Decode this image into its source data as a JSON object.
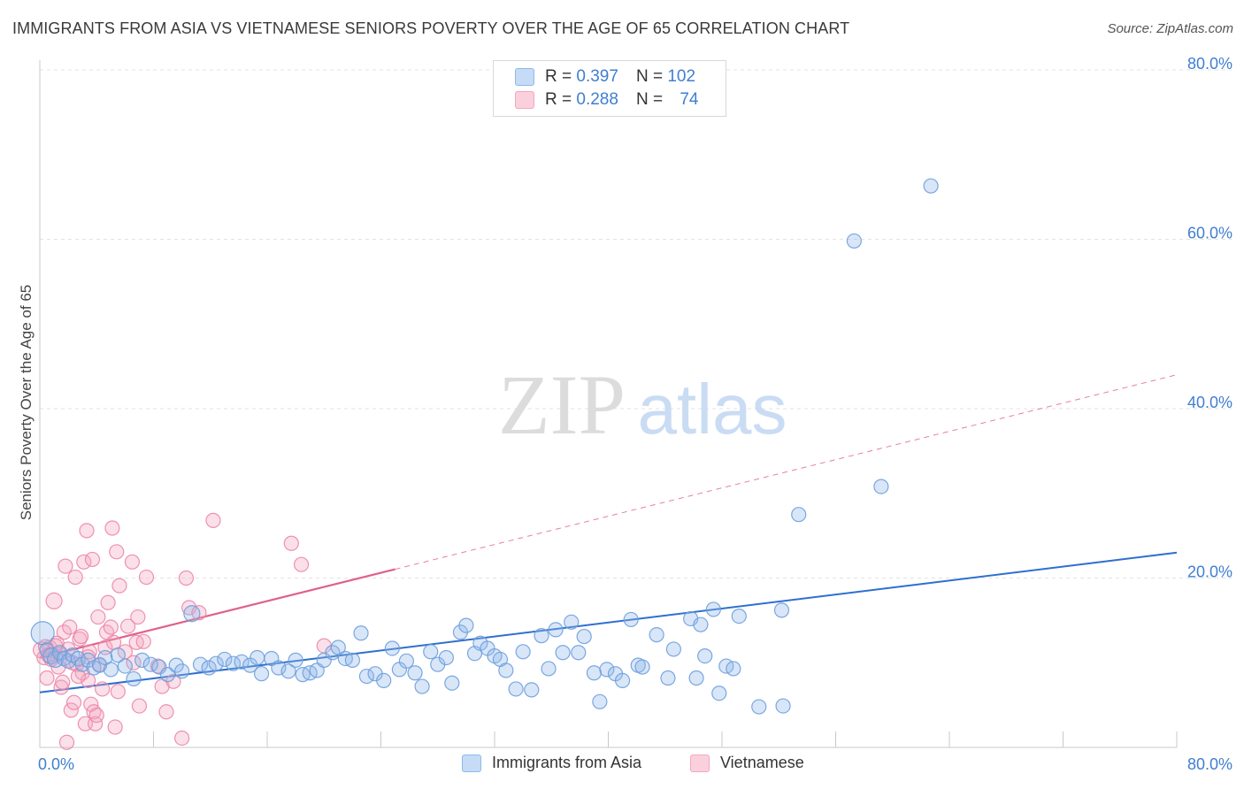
{
  "chart_data": {
    "type": "scatter",
    "title": "IMMIGRANTS FROM ASIA VS VIETNAMESE SENIORS POVERTY OVER THE AGE OF 65 CORRELATION CHART",
    "source": "Source: ZipAtlas.com",
    "watermark": {
      "zip": "ZIP",
      "atlas": "atlas"
    },
    "ylabel": "Seniors Poverty Over the Age of 65",
    "xlim": [
      0,
      80
    ],
    "ylim": [
      0,
      80
    ],
    "x_tick_labels": [
      "0.0%",
      "80.0%"
    ],
    "y_ticks": [
      {
        "value": 80,
        "label": "80.0%"
      },
      {
        "value": 60,
        "label": "60.0%"
      },
      {
        "value": 40,
        "label": "40.0%"
      },
      {
        "value": 20,
        "label": "20.0%"
      }
    ],
    "legend": [
      {
        "r_label": "R =",
        "r_value": "0.397",
        "n_label": "N =",
        "n_value": "102"
      },
      {
        "r_label": "R =",
        "r_value": "0.288",
        "n_label": "N =",
        "n_value": "74"
      }
    ],
    "series": [
      {
        "name": "Immigrants from Asia",
        "color": "#8fb8ea",
        "stroke": "#6d9edc",
        "line_color": "#2f6fce",
        "trend": {
          "x0": 0,
          "y0": 6.5,
          "x1": 80,
          "y1": 23.0,
          "dashed_until": 80
        },
        "points": [
          [
            0.2,
            13.5,
            13
          ],
          [
            0.5,
            11.5,
            8
          ],
          [
            0.8,
            10.8,
            9
          ],
          [
            1.1,
            10.4,
            9
          ],
          [
            1.4,
            11.2,
            8
          ],
          [
            1.7,
            10.5,
            8
          ],
          [
            2.0,
            10.2,
            8
          ],
          [
            2.3,
            10.9,
            8
          ],
          [
            2.7,
            10.5,
            8
          ],
          [
            3.0,
            9.8,
            8
          ],
          [
            3.4,
            10.3,
            8
          ],
          [
            3.8,
            9.4,
            8
          ],
          [
            4.2,
            9.7,
            8
          ],
          [
            4.6,
            10.6,
            8
          ],
          [
            5.0,
            9.2,
            8
          ],
          [
            5.5,
            10.9,
            8
          ],
          [
            6.0,
            9.6,
            8
          ],
          [
            6.6,
            8.1,
            8
          ],
          [
            7.2,
            10.3,
            8
          ],
          [
            7.8,
            9.8,
            8
          ],
          [
            8.4,
            9.5,
            8
          ],
          [
            9.0,
            8.6,
            8
          ],
          [
            9.6,
            9.7,
            8
          ],
          [
            10.0,
            9.0,
            8
          ],
          [
            10.7,
            15.8,
            9
          ],
          [
            11.3,
            9.8,
            8
          ],
          [
            11.9,
            9.4,
            8
          ],
          [
            12.4,
            9.9,
            8
          ],
          [
            13.0,
            10.4,
            8
          ],
          [
            13.6,
            9.9,
            8
          ],
          [
            14.2,
            10.1,
            8
          ],
          [
            14.8,
            9.7,
            8
          ],
          [
            15.3,
            10.6,
            8
          ],
          [
            15.6,
            8.7,
            8
          ],
          [
            16.3,
            10.5,
            8
          ],
          [
            16.8,
            9.4,
            8
          ],
          [
            17.5,
            9.0,
            8
          ],
          [
            18.0,
            10.3,
            8
          ],
          [
            18.5,
            8.6,
            8
          ],
          [
            19.0,
            8.8,
            8
          ],
          [
            19.5,
            9.1,
            8
          ],
          [
            20.0,
            10.3,
            8
          ],
          [
            20.6,
            11.2,
            8
          ],
          [
            21.0,
            11.8,
            8
          ],
          [
            21.5,
            10.5,
            8
          ],
          [
            22.0,
            10.3,
            8
          ],
          [
            22.6,
            13.5,
            8
          ],
          [
            23.0,
            8.4,
            8
          ],
          [
            23.6,
            8.7,
            8
          ],
          [
            24.2,
            7.9,
            8
          ],
          [
            24.8,
            11.7,
            8
          ],
          [
            25.3,
            9.2,
            8
          ],
          [
            25.8,
            10.2,
            8
          ],
          [
            26.4,
            8.8,
            8
          ],
          [
            26.9,
            7.2,
            8
          ],
          [
            27.5,
            11.3,
            8
          ],
          [
            28.0,
            9.8,
            8
          ],
          [
            28.6,
            10.6,
            8
          ],
          [
            29.0,
            7.6,
            8
          ],
          [
            29.6,
            13.6,
            8
          ],
          [
            30.0,
            14.4,
            8
          ],
          [
            30.6,
            11.1,
            8
          ],
          [
            31.0,
            12.3,
            8
          ],
          [
            31.5,
            11.7,
            8
          ],
          [
            32.0,
            10.8,
            8
          ],
          [
            32.4,
            10.4,
            8
          ],
          [
            32.8,
            9.1,
            8
          ],
          [
            33.5,
            6.9,
            8
          ],
          [
            34.0,
            11.3,
            8
          ],
          [
            34.6,
            6.8,
            8
          ],
          [
            35.3,
            13.2,
            8
          ],
          [
            35.8,
            9.3,
            8
          ],
          [
            36.3,
            13.9,
            8
          ],
          [
            36.8,
            11.2,
            8
          ],
          [
            37.4,
            14.8,
            8
          ],
          [
            37.9,
            11.2,
            8
          ],
          [
            38.3,
            13.1,
            8
          ],
          [
            39.0,
            8.8,
            8
          ],
          [
            39.4,
            5.4,
            8
          ],
          [
            39.9,
            9.2,
            8
          ],
          [
            40.5,
            8.7,
            8
          ],
          [
            41.0,
            7.9,
            8
          ],
          [
            41.6,
            15.1,
            8
          ],
          [
            42.1,
            9.7,
            8
          ],
          [
            42.4,
            9.5,
            8
          ],
          [
            43.4,
            13.3,
            8
          ],
          [
            44.2,
            8.2,
            8
          ],
          [
            44.6,
            11.6,
            8
          ],
          [
            45.8,
            15.2,
            8
          ],
          [
            46.2,
            8.2,
            8
          ],
          [
            46.8,
            10.8,
            8
          ],
          [
            47.4,
            16.3,
            8
          ],
          [
            47.8,
            6.4,
            8
          ],
          [
            48.3,
            9.6,
            8
          ],
          [
            48.8,
            9.3,
            8
          ],
          [
            49.2,
            15.5,
            8
          ],
          [
            50.6,
            4.8,
            8
          ],
          [
            52.2,
            16.2,
            8
          ],
          [
            52.3,
            4.9,
            8
          ],
          [
            53.4,
            27.5,
            8
          ],
          [
            57.3,
            59.8,
            8
          ],
          [
            59.2,
            30.8,
            8
          ],
          [
            62.7,
            66.3,
            8
          ],
          [
            46.5,
            14.5,
            8
          ]
        ]
      },
      {
        "name": "Vietnamese",
        "color": "#f4a7c0",
        "stroke": "#ec86a7",
        "line_color": "#e0608a",
        "trend": {
          "x0": 0,
          "y0": 10.6,
          "x1": 80,
          "y1": 44.0,
          "solid_until": 25
        },
        "points": [
          [
            0.1,
            11.5,
            9
          ],
          [
            0.3,
            10.6,
            8
          ],
          [
            0.5,
            8.2,
            8
          ],
          [
            0.7,
            11.8,
            8
          ],
          [
            0.9,
            11.0,
            8
          ],
          [
            1.0,
            17.3,
            9
          ],
          [
            1.2,
            12.3,
            8
          ],
          [
            1.3,
            9.5,
            8
          ],
          [
            1.5,
            7.1,
            8
          ],
          [
            1.6,
            7.7,
            8
          ],
          [
            1.7,
            13.6,
            8
          ],
          [
            1.8,
            21.4,
            8
          ],
          [
            2.0,
            11.6,
            8
          ],
          [
            2.1,
            14.2,
            8
          ],
          [
            2.2,
            4.4,
            8
          ],
          [
            2.3,
            10.0,
            8
          ],
          [
            2.4,
            5.3,
            8
          ],
          [
            2.5,
            20.1,
            8
          ],
          [
            2.6,
            9.8,
            8
          ],
          [
            2.8,
            12.8,
            8
          ],
          [
            2.9,
            13.1,
            8
          ],
          [
            3.0,
            8.8,
            8
          ],
          [
            3.1,
            21.9,
            8
          ],
          [
            3.2,
            2.8,
            8
          ],
          [
            3.3,
            25.6,
            8
          ],
          [
            3.4,
            7.9,
            8
          ],
          [
            3.5,
            11.3,
            8
          ],
          [
            3.6,
            5.1,
            8
          ],
          [
            3.7,
            22.2,
            8
          ],
          [
            3.8,
            4.2,
            8
          ],
          [
            3.9,
            2.8,
            8
          ],
          [
            4.0,
            3.8,
            8
          ],
          [
            4.1,
            15.4,
            8
          ],
          [
            4.2,
            9.8,
            8
          ],
          [
            4.4,
            6.9,
            8
          ],
          [
            4.6,
            11.8,
            8
          ],
          [
            4.7,
            13.6,
            8
          ],
          [
            4.8,
            17.1,
            8
          ],
          [
            5.0,
            14.2,
            8
          ],
          [
            5.1,
            25.9,
            8
          ],
          [
            5.2,
            12.4,
            8
          ],
          [
            5.3,
            2.4,
            8
          ],
          [
            5.4,
            23.1,
            8
          ],
          [
            5.5,
            6.6,
            8
          ],
          [
            5.6,
            19.1,
            8
          ],
          [
            6.0,
            11.3,
            8
          ],
          [
            6.2,
            14.3,
            8
          ],
          [
            6.5,
            21.9,
            8
          ],
          [
            6.6,
            10.0,
            8
          ],
          [
            6.8,
            12.4,
            8
          ],
          [
            6.9,
            15.4,
            8
          ],
          [
            7.0,
            4.9,
            8
          ],
          [
            7.3,
            12.5,
            8
          ],
          [
            7.5,
            20.1,
            8
          ],
          [
            8.3,
            9.6,
            8
          ],
          [
            8.6,
            7.2,
            8
          ],
          [
            8.9,
            4.2,
            8
          ],
          [
            9.4,
            7.8,
            8
          ],
          [
            10.0,
            1.1,
            8
          ],
          [
            10.3,
            20.0,
            8
          ],
          [
            10.5,
            16.5,
            8
          ],
          [
            11.2,
            15.9,
            8
          ],
          [
            12.2,
            26.8,
            8
          ],
          [
            17.7,
            24.1,
            8
          ],
          [
            18.4,
            21.6,
            8
          ],
          [
            20.0,
            12.0,
            8
          ],
          [
            1.4,
            11.0,
            8
          ],
          [
            0.8,
            10.4,
            8
          ],
          [
            0.4,
            11.9,
            8
          ],
          [
            1.1,
            12.0,
            8
          ],
          [
            2.7,
            8.4,
            8
          ],
          [
            0.6,
            10.9,
            8
          ],
          [
            1.9,
            0.6,
            8
          ],
          [
            3.4,
            10.7,
            8
          ]
        ]
      }
    ]
  }
}
